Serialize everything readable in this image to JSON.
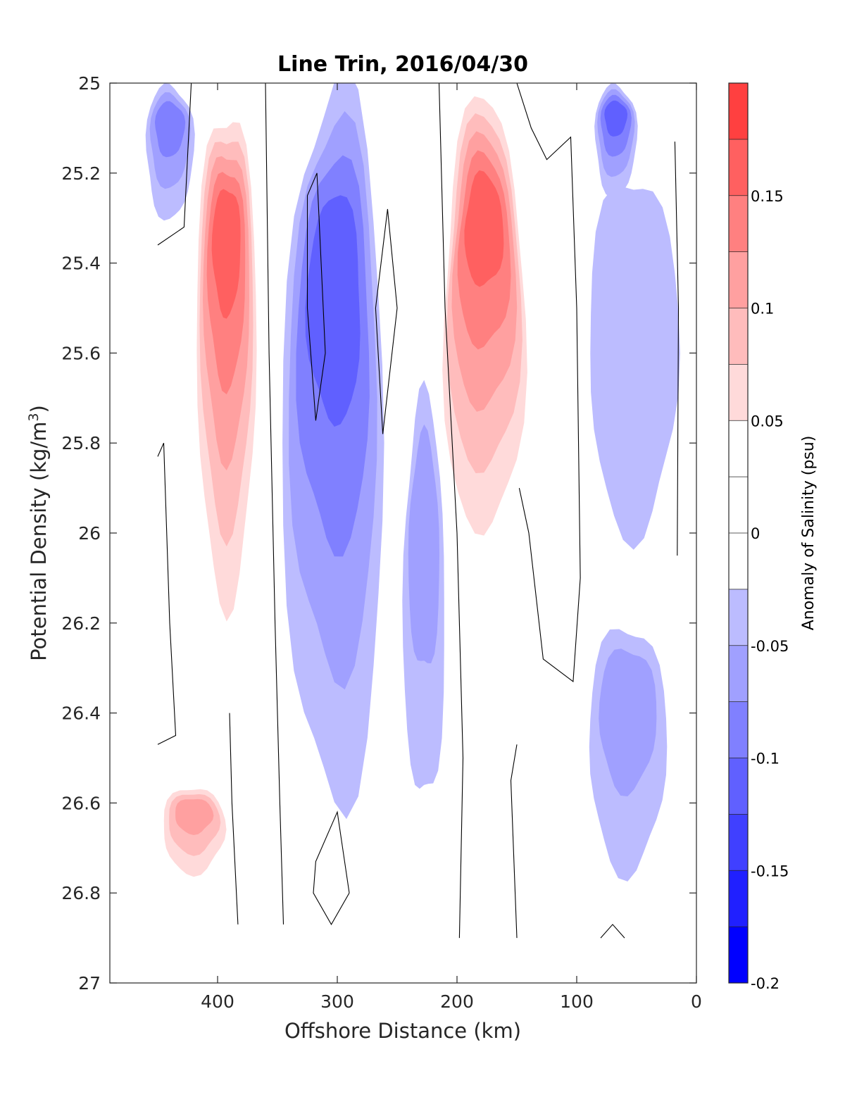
{
  "chart_data": {
    "type": "heatmap",
    "subtype": "filled-contour",
    "title": "Line Trin, 2016/04/30",
    "xlabel": "Offshore Distance (km)",
    "ylabel_main": "Potential Density (kg/m",
    "ylabel_sup": "3",
    "ylabel_close": ")",
    "xlim": [
      490,
      0
    ],
    "x_reversed": true,
    "ylim": [
      27,
      25
    ],
    "y_reversed": true,
    "x_ticks": [
      400,
      300,
      200,
      100,
      0
    ],
    "x_tick_labels": [
      "400",
      "300",
      "200",
      "100",
      "0"
    ],
    "y_ticks": [
      25,
      25.2,
      25.4,
      25.6,
      25.8,
      26,
      26.2,
      26.4,
      26.6,
      26.8,
      27
    ],
    "y_tick_labels": [
      "25",
      "25.2",
      "25.4",
      "25.6",
      "25.8",
      "26",
      "26.2",
      "26.4",
      "26.6",
      "26.8",
      "27"
    ],
    "colorbar": {
      "label": "Anomaly of Salinity (psu)",
      "range": [
        -0.2,
        0.2
      ],
      "ticks": [
        0.15,
        0.1,
        0.05,
        0,
        -0.05,
        -0.1,
        -0.15,
        -0.2
      ],
      "tick_labels": [
        "0.15",
        "0.1",
        "0.05",
        "0",
        "-0.05",
        "-0.1",
        "-0.15",
        "-0.2"
      ],
      "levels": [
        -0.2,
        -0.175,
        -0.15,
        -0.125,
        -0.1,
        -0.075,
        -0.05,
        -0.025,
        0.025,
        0.05,
        0.075,
        0.1,
        0.125,
        0.15,
        0.175,
        0.2
      ],
      "colors": [
        "#0000ff",
        "#2020ff",
        "#4040ff",
        "#6060ff",
        "#8080ff",
        "#a0a0ff",
        "#bcbcff",
        "#dadaff",
        "#ffffff",
        "#ffdada",
        "#ffbcbc",
        "#ffa0a0",
        "#ff8080",
        "#ff6060",
        "#ff4040",
        "#ff2020",
        "#ff0000"
      ]
    },
    "zero_contour": "black line",
    "grid": false,
    "features": [
      {
        "name": "salty-core-offshore",
        "x_range": [
          420,
          365
        ],
        "y_range": [
          25.0,
          26.3
        ],
        "peak": 0.17
      },
      {
        "name": "salty-core-offshore-deep",
        "x_range": [
          450,
          390
        ],
        "y_range": [
          26.55,
          26.8
        ],
        "peak": 0.12
      },
      {
        "name": "salty-core-mid",
        "x_range": [
          215,
          140
        ],
        "y_range": [
          25.0,
          26.15
        ],
        "peak": 0.16
      },
      {
        "name": "fresh-band-300km",
        "x_range": [
          345,
          260
        ],
        "y_range": [
          25.0,
          26.6
        ],
        "peak": -0.1
      },
      {
        "name": "fresh-band-230km",
        "x_range": [
          245,
          210
        ],
        "y_range": [
          25.7,
          26.6
        ],
        "peak": -0.07
      },
      {
        "name": "fresh-patch-450km",
        "x_range": [
          460,
          420
        ],
        "y_range": [
          25.0,
          25.3
        ],
        "peak": -0.09
      },
      {
        "name": "fresh-patch-70km",
        "x_range": [
          85,
          50
        ],
        "y_range": [
          25.0,
          25.25
        ],
        "peak": -0.12
      },
      {
        "name": "fresh-nearshore",
        "x_range": [
          90,
          15
        ],
        "y_range": [
          25.2,
          26.0
        ],
        "peak": -0.04
      },
      {
        "name": "fresh-deep-40km",
        "x_range": [
          90,
          25
        ],
        "y_range": [
          26.2,
          26.75
        ],
        "peak": -0.07
      }
    ]
  }
}
